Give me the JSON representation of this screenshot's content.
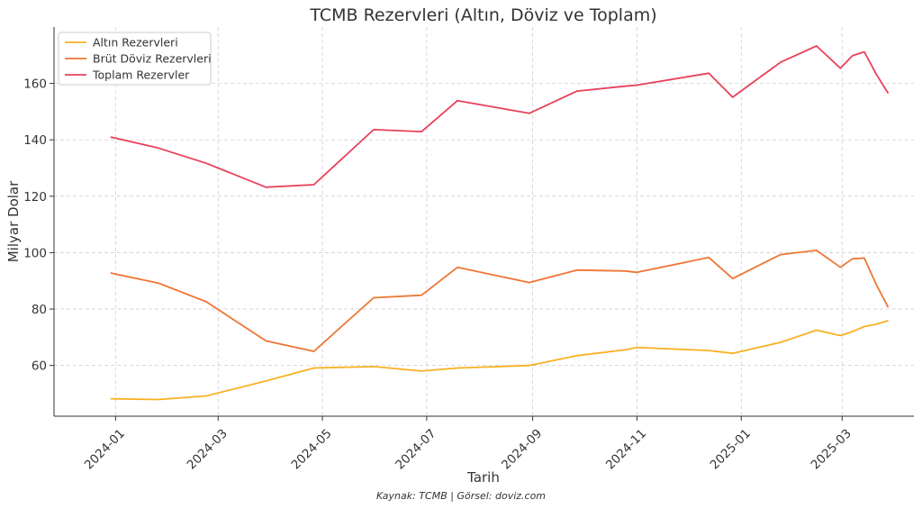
{
  "chart_data": {
    "type": "line",
    "title": "TCMB Rezervleri (Altın, Döviz ve Toplam)",
    "xlabel": "Tarih",
    "ylabel": "Milyar Dolar",
    "caption": "Kaynak: TCMB | Görsel: doviz.com",
    "x_tick_labels": [
      "2024-01",
      "2024-03",
      "2024-05",
      "2024-07",
      "2024-09",
      "2024-11",
      "2025-01",
      "2025-03"
    ],
    "x_tick_dates": [
      "2024-01-01",
      "2024-03-01",
      "2024-05-01",
      "2024-07-01",
      "2024-09-01",
      "2024-11-01",
      "2025-01-01",
      "2025-03-01"
    ],
    "xlim": [
      "2023-11-26",
      "2025-04-12"
    ],
    "y_ticks": [
      60,
      80,
      100,
      120,
      140,
      160
    ],
    "ylim": [
      42,
      180
    ],
    "grid": true,
    "legend_position": "top-left",
    "x": [
      "2023-12-29",
      "2024-01-26",
      "2024-02-23",
      "2024-03-29",
      "2024-04-26",
      "2024-05-31",
      "2024-06-28",
      "2024-07-19",
      "2024-08-30",
      "2024-09-27",
      "2024-10-25",
      "2024-11-01",
      "2024-12-13",
      "2024-12-27",
      "2025-01-24",
      "2025-02-14",
      "2025-02-28",
      "2025-03-07",
      "2025-03-14",
      "2025-03-21",
      "2025-03-28"
    ],
    "series": [
      {
        "name": "Altın Rezervleri",
        "color": "#f8b022",
        "values": [
          48.2,
          47.9,
          49.2,
          54.5,
          59.1,
          59.6,
          58.0,
          59.1,
          60.0,
          63.5,
          65.5,
          66.4,
          65.3,
          64.3,
          68.2,
          72.5,
          70.6,
          72.0,
          73.8,
          74.6,
          75.9
        ]
      },
      {
        "name": "Brüt Döviz Rezervleri",
        "color": "#ef7533",
        "values": [
          92.8,
          89.2,
          82.6,
          68.7,
          65.0,
          84.0,
          84.9,
          94.8,
          89.4,
          93.8,
          93.5,
          93.0,
          98.3,
          90.8,
          99.3,
          100.8,
          94.8,
          97.8,
          98.1,
          88.7,
          80.6
        ]
      },
      {
        "name": "Toplam Rezervler",
        "color": "#e8405b",
        "values": [
          141.0,
          137.1,
          131.7,
          123.2,
          124.1,
          143.6,
          142.9,
          153.9,
          149.4,
          157.3,
          159.0,
          159.4,
          163.6,
          155.1,
          167.5,
          173.3,
          165.4,
          169.8,
          171.2,
          163.3,
          156.5
        ]
      }
    ]
  }
}
